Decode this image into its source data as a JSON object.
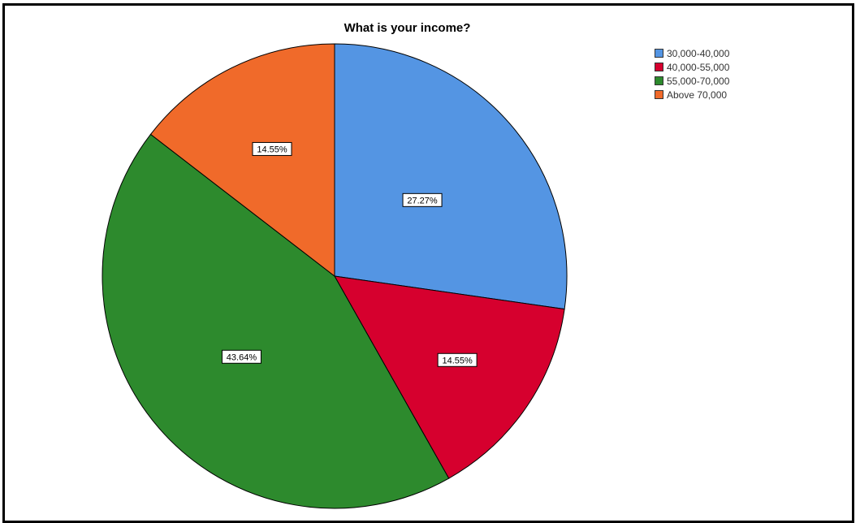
{
  "chart_data": {
    "type": "pie",
    "title": "What is your income?",
    "categories": [
      "30,000-40,000",
      "40,000-55,000",
      "55,000-70,000",
      "Above 70,000"
    ],
    "values": [
      27.27,
      14.55,
      43.64,
      14.55
    ],
    "labels": [
      "27.27%",
      "14.55%",
      "43.64%",
      "14.55%"
    ],
    "colors": [
      "#5495e3",
      "#d6002e",
      "#2d8a2d",
      "#f06a2a"
    ],
    "start_angle_deg": 0,
    "direction": "clockwise",
    "legend_position": "top-right"
  }
}
